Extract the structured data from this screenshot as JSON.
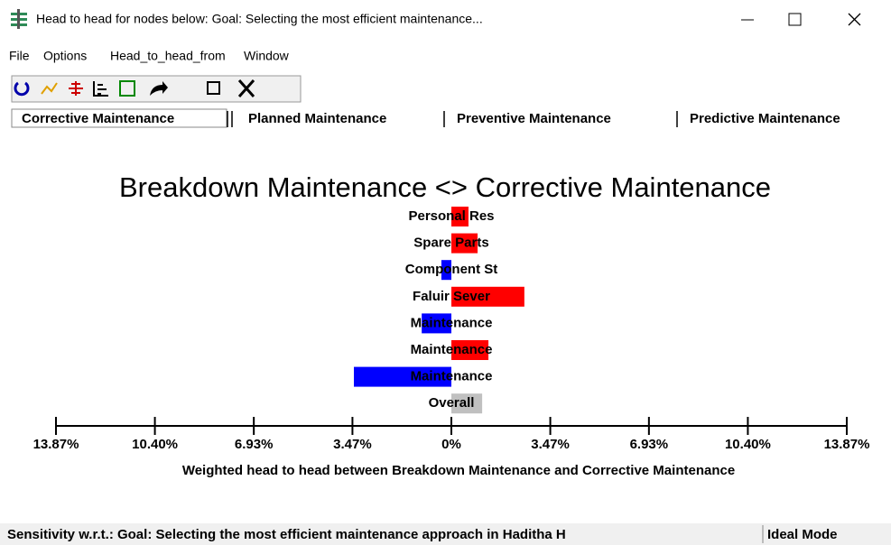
{
  "window": {
    "title": "Head to head for nodes below: Goal: Selecting the most efficient maintenance..."
  },
  "menu": [
    "File",
    "Options",
    "Head_to_head_from",
    "Window"
  ],
  "tabs": [
    "Corrective Maintenance",
    "Planned Maintenance",
    "Preventive Maintenance",
    "Predictive Maintenance"
  ],
  "chart_data": {
    "type": "bar",
    "orientation": "horizontal",
    "title": "Breakdown Maintenance <> Corrective Maintenance",
    "x_label": "Weighted head to head between Breakdown Maintenance and Corrective Maintenance",
    "categories": [
      "Personal Res",
      "Spare Parts",
      "Component St",
      "Faluir Sever",
      "Maintenance",
      "Maintenance",
      "Maintenance",
      "Overall"
    ],
    "values": [
      0.6,
      0.92,
      -0.35,
      2.56,
      -1.04,
      1.3,
      -3.42,
      1.08
    ],
    "colors": [
      "#ff0000",
      "#ff0000",
      "#0000ff",
      "#ff0000",
      "#0000ff",
      "#ff0000",
      "#0000ff",
      "#c0c0c0"
    ],
    "xlim": [
      -13.87,
      13.87
    ],
    "xticks": [
      {
        "value": -13.87,
        "label": "13.87%"
      },
      {
        "value": -10.4,
        "label": "10.40%"
      },
      {
        "value": -6.93,
        "label": "6.93%"
      },
      {
        "value": -3.47,
        "label": "3.47%"
      },
      {
        "value": 0,
        "label": "0%"
      },
      {
        "value": 3.47,
        "label": "3.47%"
      },
      {
        "value": 6.93,
        "label": "6.93%"
      },
      {
        "value": 10.4,
        "label": "10.40%"
      },
      {
        "value": 13.87,
        "label": "13.87%"
      }
    ]
  },
  "status_bar": [
    "Sensitivity w.r.t.: Goal: Selecting the most efficient maintenance approach in Haditha H",
    "Ideal Mode"
  ]
}
